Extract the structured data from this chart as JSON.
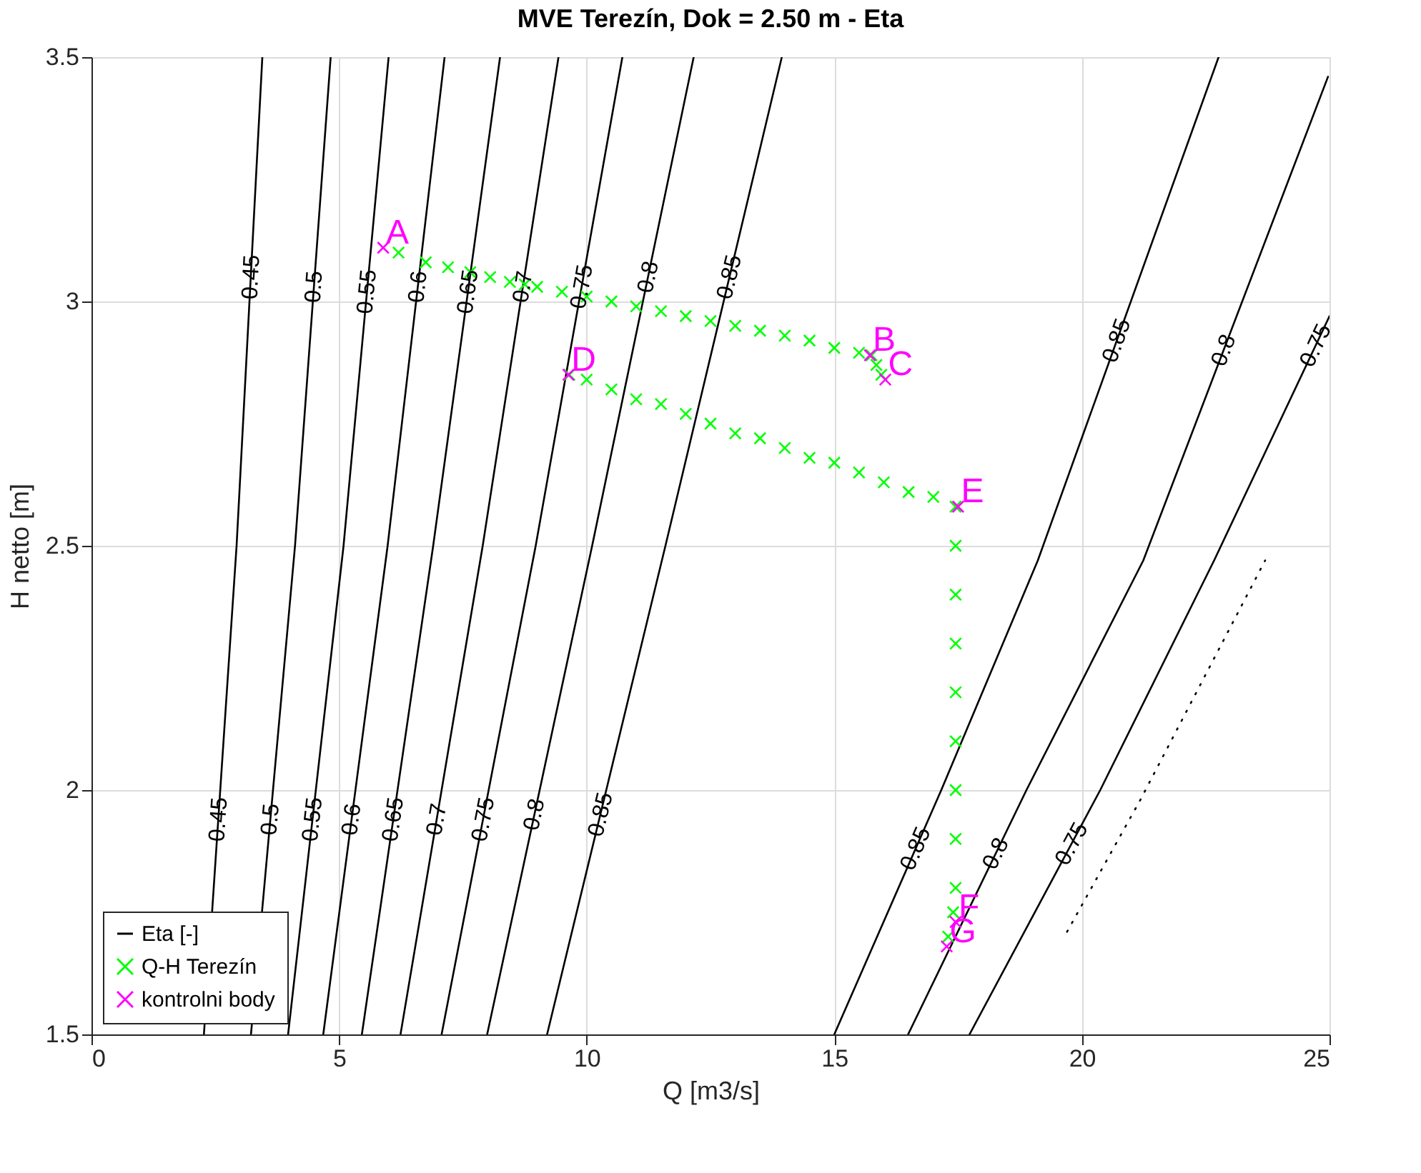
{
  "chart_data": {
    "type": "line",
    "title": "MVE Terezín, Dok = 2.50 m - Eta",
    "xlabel": "Q [m3/s]",
    "ylabel": "H netto [m]",
    "xlim": [
      0,
      25
    ],
    "xticks": [
      0,
      5,
      10,
      15,
      20,
      25
    ],
    "ylim": [
      1.5,
      3.5
    ],
    "yticks": [
      1.5,
      2,
      2.5,
      3,
      3.5
    ],
    "grid": true,
    "legend": "bottom left",
    "line_style": "solid",
    "series": [
      {
        "name": "Eta [-]",
        "color": "#000000",
        "x": [
          2.27,
          2.93,
          3.45
        ],
        "values": [
          1.5,
          2.5,
          3.5
        ]
      },
      {
        "color": "#000000",
        "x": [
          3.22,
          4.11,
          4.83
        ],
        "values": [
          1.5,
          2.5,
          3.5
        ]
      },
      {
        "color": "#000000",
        "x": [
          3.97,
          5.09,
          6.0
        ],
        "values": [
          1.5,
          2.5,
          3.5
        ]
      },
      {
        "color": "#000000",
        "x": [
          4.68,
          5.98,
          7.13
        ],
        "values": [
          1.5,
          2.5,
          3.5
        ]
      },
      {
        "color": "#000000",
        "x": [
          5.46,
          6.9,
          8.25
        ],
        "values": [
          1.5,
          2.5,
          3.5
        ]
      },
      {
        "color": "#000000",
        "x": [
          6.24,
          7.9,
          9.43
        ],
        "values": [
          1.5,
          2.5,
          3.5
        ]
      },
      {
        "color": "#000000",
        "x": [
          7.07,
          8.97,
          10.72
        ],
        "values": [
          1.5,
          2.5,
          3.5
        ]
      },
      {
        "color": "#000000",
        "x": [
          7.99,
          10.11,
          12.16
        ],
        "values": [
          1.5,
          2.5,
          3.5
        ]
      },
      {
        "color": "#000000",
        "x": [
          9.2,
          11.59,
          13.94
        ],
        "values": [
          1.5,
          2.5,
          3.5
        ]
      },
      {
        "color": "#000000",
        "x": [
          15.0,
          17.16,
          19.11,
          22.76
        ],
        "values": [
          1.5,
          2.0,
          2.47,
          3.5
        ]
      },
      {
        "color": "#000000",
        "x": [
          16.49,
          18.88,
          21.24,
          24.97
        ],
        "values": [
          1.5,
          2.0,
          2.47,
          3.46
        ]
      },
      {
        "color": "#000000",
        "x": [
          17.73,
          20.37,
          22.67,
          25.0
        ],
        "values": [
          1.5,
          2.0,
          2.47,
          2.97
        ]
      },
      {
        "color": "#000000",
        "line_style": "dotted",
        "x": [
          19.7,
          21.18,
          23.7
        ],
        "values": [
          1.71,
          1.98,
          2.47
        ]
      },
      {
        "name": "Q-H Terezín",
        "type": "scatter",
        "marker": "cross",
        "color": "#00ff00",
        "x": [
          6.2,
          6.75,
          7.2,
          7.65,
          8.05,
          8.45,
          8.75,
          9.0,
          9.5,
          10,
          10.5,
          11,
          11.5,
          12,
          12.5,
          13,
          13.5,
          14,
          14.5,
          15,
          15.5,
          15.75,
          15.85,
          15.95,
          9.65,
          10,
          10.5,
          11,
          11.5,
          12,
          12.5,
          13,
          13.5,
          14,
          14.5,
          15,
          15.5,
          16,
          16.5,
          17,
          17.45,
          17.45,
          17.45,
          17.45,
          17.45,
          17.45,
          17.45,
          17.45,
          17.45,
          17.4,
          17.3
        ],
        "values": [
          3.1,
          3.08,
          3.07,
          3.06,
          3.05,
          3.04,
          3.035,
          3.03,
          3.02,
          3.01,
          3.0,
          2.99,
          2.98,
          2.97,
          2.96,
          2.95,
          2.94,
          2.93,
          2.92,
          2.905,
          2.895,
          2.89,
          2.87,
          2.85,
          2.85,
          2.84,
          2.82,
          2.8,
          2.79,
          2.77,
          2.75,
          2.73,
          2.72,
          2.7,
          2.68,
          2.67,
          2.65,
          2.63,
          2.61,
          2.6,
          2.58,
          2.5,
          2.4,
          2.3,
          2.2,
          2.1,
          2.0,
          1.9,
          1.8,
          1.75,
          1.7
        ]
      },
      {
        "name": "kontrolni body",
        "type": "scatter",
        "marker": "cross",
        "color": "#ff00ff",
        "x": [
          5.89,
          15.72,
          16.03,
          9.63,
          17.5,
          17.45,
          17.27
        ],
        "values": [
          3.11,
          2.89,
          2.84,
          2.85,
          2.58,
          1.73,
          1.68
        ],
        "value_labels": [
          "A",
          "B",
          "C",
          "D",
          "E",
          "F",
          "G"
        ]
      }
    ],
    "annotations": [
      {
        "text": "0.45",
        "x": 3.22,
        "y": 3.05
      },
      {
        "text": "0.5",
        "x": 4.49,
        "y": 3.03
      },
      {
        "text": "0.55",
        "x": 5.56,
        "y": 3.02
      },
      {
        "text": "0.6",
        "x": 6.59,
        "y": 3.03
      },
      {
        "text": "0.65",
        "x": 7.6,
        "y": 3.02
      },
      {
        "text": "0.7",
        "x": 8.71,
        "y": 3.03
      },
      {
        "text": "0.75",
        "x": 9.9,
        "y": 3.03
      },
      {
        "text": "0.8",
        "x": 11.24,
        "y": 3.05
      },
      {
        "text": "0.85",
        "x": 12.88,
        "y": 3.05
      },
      {
        "text": "0.45",
        "x": 2.56,
        "y": 1.94
      },
      {
        "text": "0.5",
        "x": 3.61,
        "y": 1.94
      },
      {
        "text": "0.55",
        "x": 4.46,
        "y": 1.94
      },
      {
        "text": "0.6",
        "x": 5.25,
        "y": 1.94
      },
      {
        "text": "0.65",
        "x": 6.09,
        "y": 1.94
      },
      {
        "text": "0.7",
        "x": 6.97,
        "y": 1.94
      },
      {
        "text": "0.75",
        "x": 7.91,
        "y": 1.94
      },
      {
        "text": "0.8",
        "x": 8.94,
        "y": 1.95
      },
      {
        "text": "0.85",
        "x": 10.28,
        "y": 1.95
      },
      {
        "text": "0.85",
        "x": 20.7,
        "y": 2.92
      },
      {
        "text": "0.8",
        "x": 22.86,
        "y": 2.9
      },
      {
        "text": "0.75",
        "x": 24.72,
        "y": 2.91
      },
      {
        "text": "0.85",
        "x": 16.64,
        "y": 1.88
      },
      {
        "text": "0.8",
        "x": 18.26,
        "y": 1.87
      },
      {
        "text": "0.75",
        "x": 19.79,
        "y": 1.89
      }
    ]
  }
}
